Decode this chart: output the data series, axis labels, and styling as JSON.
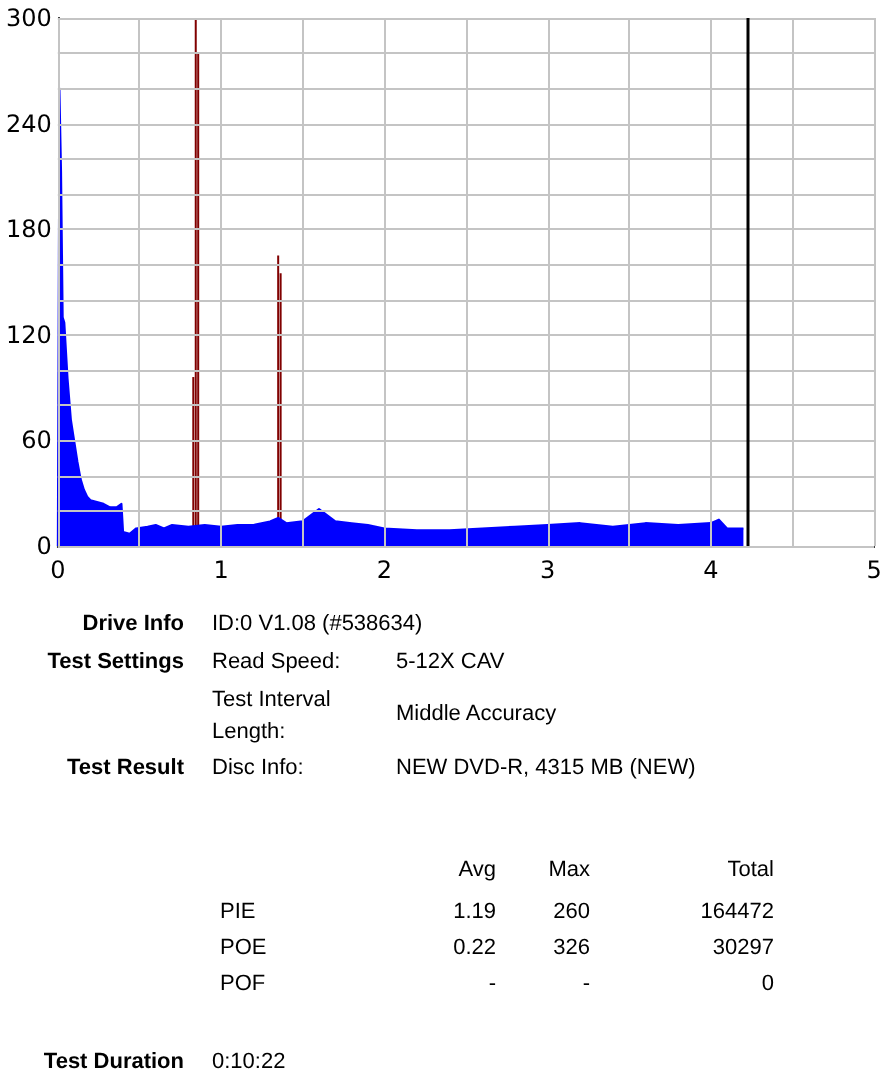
{
  "chart_data": {
    "type": "area",
    "series": [
      {
        "color": "#0000ff",
        "x": [
          0,
          0.01,
          0.02,
          0.03,
          0.04,
          0.06,
          0.08,
          0.1,
          0.12,
          0.14,
          0.16,
          0.18,
          0.2,
          0.24,
          0.28,
          0.32,
          0.36,
          0.39,
          0.4,
          0.44,
          0.48,
          0.55,
          0.6,
          0.65,
          0.7,
          0.8,
          0.9,
          1.0,
          1.1,
          1.2,
          1.3,
          1.35,
          1.4,
          1.5,
          1.6,
          1.7,
          1.8,
          1.9,
          2.0,
          2.2,
          2.4,
          2.6,
          2.8,
          3.0,
          3.2,
          3.4,
          3.6,
          3.8,
          4.0,
          4.05,
          4.1,
          4.2
        ],
        "values": [
          0,
          260,
          213,
          130,
          127,
          95,
          72,
          60,
          48,
          38,
          32,
          28,
          26,
          25,
          24,
          22,
          22,
          24,
          8,
          7,
          10,
          11,
          12,
          10,
          12,
          11,
          12,
          11,
          12,
          12,
          14,
          16,
          13,
          14,
          21,
          14,
          13,
          12,
          10,
          9,
          9,
          10,
          11,
          12,
          13,
          11,
          13,
          12,
          13,
          15,
          10,
          10
        ]
      },
      {
        "type": "bar",
        "color": "#800000",
        "x": [
          0.83,
          0.845,
          0.86,
          1.35,
          1.365
        ],
        "values": [
          96,
          300,
          280,
          165,
          155
        ]
      }
    ],
    "xlim": [
      0,
      5
    ],
    "xticks": [
      0,
      {
        "value": 0.5,
        "label": null
      },
      1,
      {
        "value": 1.5,
        "label": null
      },
      2,
      {
        "value": 2.5,
        "label": null
      },
      3,
      {
        "value": 3.5,
        "label": null
      },
      4,
      {
        "value": 4.5,
        "label": null
      },
      5
    ],
    "ylim": [
      0,
      300
    ],
    "yticks": [
      0,
      {
        "value": 20,
        "label": null
      },
      {
        "value": 40,
        "label": null
      },
      60,
      {
        "value": 80,
        "label": null
      },
      {
        "value": 100,
        "label": null
      },
      120,
      {
        "value": 140,
        "label": null
      },
      {
        "value": 160,
        "label": null
      },
      180,
      {
        "value": 200,
        "label": null
      },
      {
        "value": 220,
        "label": null
      },
      240,
      {
        "value": 260,
        "label": null
      },
      {
        "value": 280,
        "label": null
      },
      300
    ],
    "grid": true,
    "ref_lines": [
      {
        "axis": "x",
        "value": 4.22,
        "color": "#000000"
      }
    ],
    "annotations": [
      "Drive Info",
      "ID:0 V1.08 (#538634)",
      "Test Settings",
      "Read Speed:",
      "5-12X CAV",
      "Test Interval Length:",
      "Middle Accuracy",
      "Test Result",
      "Disc Info:",
      "NEW DVD-R, 4315 MB (NEW)",
      "Avg",
      "Max",
      "Total",
      "PIE",
      "1.19",
      "260",
      "164472",
      "POE",
      "0.22",
      "326",
      "30297",
      "POF",
      "-",
      "-",
      "0",
      "Test Duration",
      "0:10:22"
    ]
  }
}
